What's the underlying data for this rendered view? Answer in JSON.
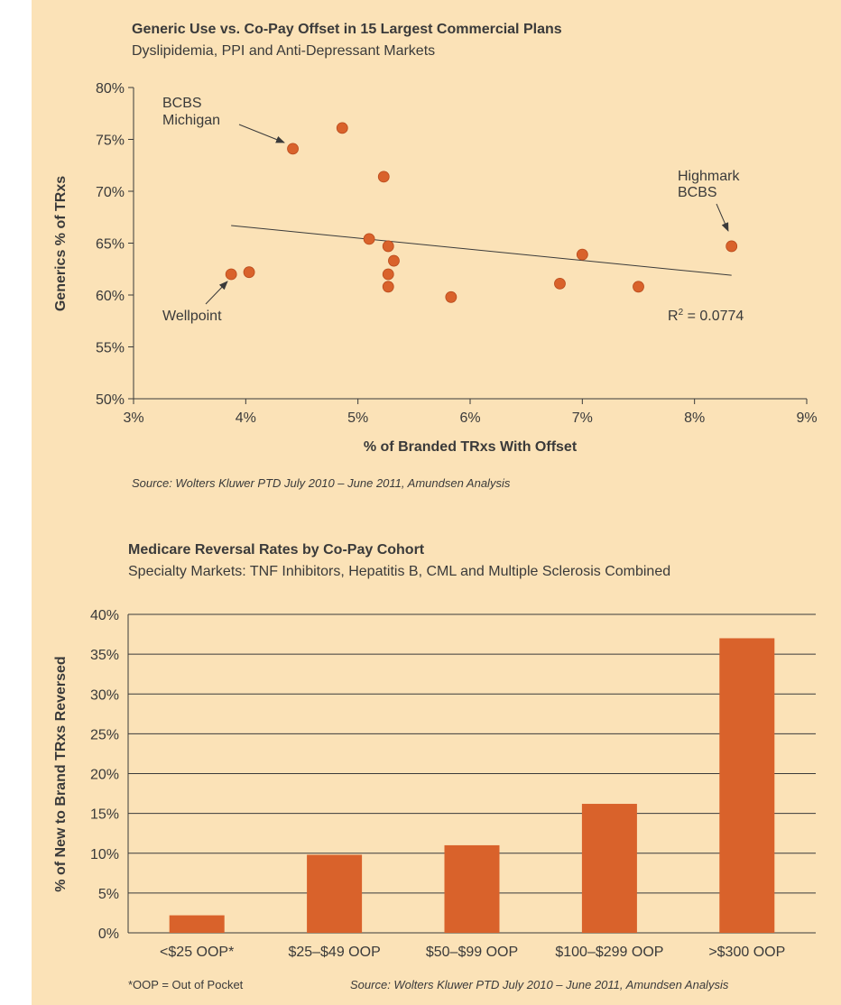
{
  "chart_data": [
    {
      "type": "scatter",
      "title": "Generic Use vs. Co-Pay Offset in 15 Largest Commercial Plans",
      "subtitle": "Dyslipidemia, PPI and Anti-Depressant Markets",
      "xlabel": "% of Branded TRxs With Offset",
      "ylabel": "Generics % of TRxs",
      "xlim": [
        3,
        9
      ],
      "ylim": [
        50,
        80
      ],
      "x_ticks": [
        "3%",
        "4%",
        "5%",
        "6%",
        "7%",
        "8%",
        "9%"
      ],
      "y_ticks": [
        "50%",
        "55%",
        "60%",
        "65%",
        "70%",
        "75%",
        "80%"
      ],
      "points": [
        {
          "x": 3.87,
          "y": 62.0
        },
        {
          "x": 4.03,
          "y": 62.2
        },
        {
          "x": 4.42,
          "y": 74.1
        },
        {
          "x": 4.86,
          "y": 76.1
        },
        {
          "x": 5.1,
          "y": 65.4
        },
        {
          "x": 5.23,
          "y": 71.4
        },
        {
          "x": 5.27,
          "y": 64.7
        },
        {
          "x": 5.27,
          "y": 62.0
        },
        {
          "x": 5.27,
          "y": 60.8
        },
        {
          "x": 5.32,
          "y": 63.3
        },
        {
          "x": 5.83,
          "y": 59.8
        },
        {
          "x": 6.8,
          "y": 61.1
        },
        {
          "x": 7.0,
          "y": 63.9
        },
        {
          "x": 7.5,
          "y": 60.8
        },
        {
          "x": 8.33,
          "y": 64.7
        }
      ],
      "trendline": {
        "x": [
          3.87,
          8.33
        ],
        "y": [
          66.7,
          61.9
        ]
      },
      "annotations": [
        {
          "line1": "BCBS",
          "line2": "Michigan"
        },
        {
          "line1": "Highmark",
          "line2": "BCBS"
        },
        {
          "line1": "Wellpoint",
          "line2": ""
        }
      ],
      "r_squared": {
        "prefix": "R",
        "sup": "2",
        "suffix": " = 0.0774"
      },
      "source": "Source: Wolters Kluwer PTD July 2010 – June 2011, Amundsen Analysis",
      "point_color": "#d9622b"
    },
    {
      "type": "bar",
      "title": "Medicare Reversal Rates by Co-Pay Cohort",
      "subtitle": "Specialty Markets: TNF Inhibitors, Hepatitis B, CML and Multiple Sclerosis Combined",
      "xlabel": "",
      "ylabel": "% of New to Brand TRxs Reversed",
      "ylim": [
        0,
        40
      ],
      "y_ticks": [
        "0%",
        "5%",
        "10%",
        "15%",
        "20%",
        "25%",
        "30%",
        "35%",
        "40%"
      ],
      "categories": [
        "<$25 OOP*",
        "$25–$49 OOP",
        "$50–$99 OOP",
        "$100–$299 OOP",
        ">$300 OOP"
      ],
      "values": [
        2.2,
        9.8,
        11.0,
        16.2,
        37.0
      ],
      "footnote": "*OOP = Out of Pocket",
      "source": "Source: Wolters Kluwer PTD July 2010 – June 2011, Amundsen Analysis",
      "bar_color": "#d9622b"
    }
  ]
}
